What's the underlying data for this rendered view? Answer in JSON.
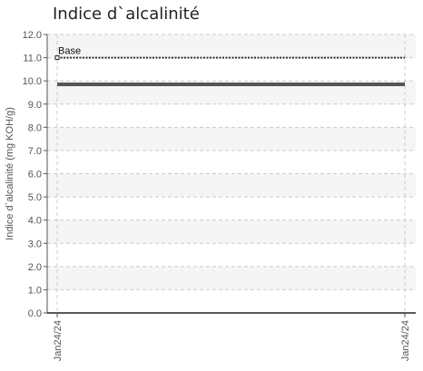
{
  "chart_data": {
    "type": "line",
    "title": "Indice d`alcalinité",
    "xlabel": "",
    "ylabel": "Indice d`alcalinité (mg KOH/g)",
    "ylim": [
      0,
      12
    ],
    "y_ticks": [
      "0.0",
      "1.0",
      "2.0",
      "3.0",
      "4.0",
      "5.0",
      "6.0",
      "7.0",
      "8.0",
      "9.0",
      "10.0",
      "11.0",
      "12.0"
    ],
    "x_ticks": [
      "Jan24/24",
      "Jan24/24"
    ],
    "grid": true,
    "series": [
      {
        "x": [
          "Jan24/24",
          "Jan24/24"
        ],
        "values": [
          9.85,
          9.85
        ],
        "color": "#555555",
        "style": "solid"
      },
      {
        "name": "Base",
        "x": [
          "Jan24/24",
          "Jan24/24"
        ],
        "values": [
          11.0,
          11.0
        ],
        "color": "#333333",
        "style": "dotted"
      }
    ],
    "annotations": [
      {
        "text": "Base",
        "y": 11.0
      }
    ]
  }
}
